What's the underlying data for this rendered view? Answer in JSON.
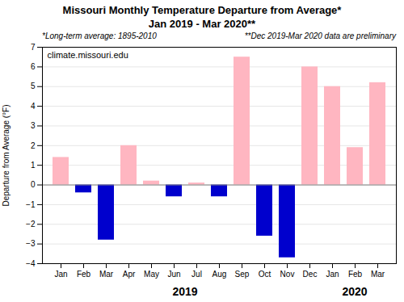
{
  "chart_data": {
    "type": "bar",
    "title": "Missouri Monthly Temperature Departure from Average*",
    "subtitle": "Jan 2019 - Mar 2020**",
    "ylabel": "Departure from Average (°F)",
    "categories": [
      "Jan",
      "Feb",
      "Mar",
      "Apr",
      "May",
      "Jun",
      "Jul",
      "Aug",
      "Sep",
      "Oct",
      "Nov",
      "Dec",
      "Jan",
      "Feb",
      "Mar"
    ],
    "group_labels": [
      "2019",
      "2020"
    ],
    "values": [
      1.4,
      -0.4,
      -2.8,
      2.0,
      0.2,
      -0.6,
      0.1,
      -0.6,
      6.5,
      -2.6,
      -3.7,
      6.0,
      5.0,
      1.9,
      5.2
    ],
    "colors": [
      "#ffb6c1",
      "#0000cd",
      "#0000cd",
      "#ffb6c1",
      "#ffb6c1",
      "#0000cd",
      "#ffb6c1",
      "#0000cd",
      "#ffb6c1",
      "#0000cd",
      "#0000cd",
      "#ffb6c1",
      "#ffb6c1",
      "#ffb6c1",
      "#ffb6c1"
    ],
    "ylim": [
      -4.0,
      7.0
    ],
    "yticks": [
      -4.0,
      -3.0,
      -2.0,
      -1.0,
      0.0,
      1.0,
      2.0,
      3.0,
      4.0,
      5.0,
      6.0,
      7.0
    ],
    "grid": true,
    "annotations": [
      "*Long-term  average: 1895-2010",
      "**Dec 2019-Mar 2020 data are preliminary",
      "climate.missouri.edu"
    ]
  }
}
